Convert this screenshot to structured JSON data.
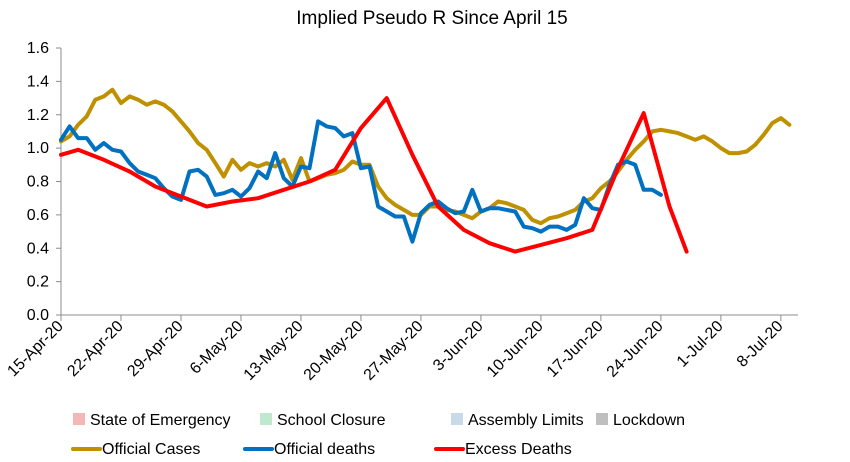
{
  "chart_data": {
    "type": "line",
    "title": "Implied Pseudo R Since April 15",
    "xlabel": "",
    "ylabel": "",
    "ylim": [
      0,
      1.6
    ],
    "yticks": [
      0.0,
      0.2,
      0.4,
      0.6,
      0.8,
      1.0,
      1.2,
      1.4,
      1.6
    ],
    "ytick_labels": [
      "0.0",
      "0.2",
      "0.4",
      "0.6",
      "0.8",
      "1.0",
      "1.2",
      "1.4",
      "1.6"
    ],
    "x_start_date": "2020-04-15",
    "x_day_count": 86,
    "xticks": [
      {
        "date": "2020-04-15",
        "label": "15-Apr-20"
      },
      {
        "date": "2020-04-22",
        "label": "22-Apr-20"
      },
      {
        "date": "2020-04-29",
        "label": "29-Apr-20"
      },
      {
        "date": "2020-05-06",
        "label": "6-May-20"
      },
      {
        "date": "2020-05-13",
        "label": "13-May-20"
      },
      {
        "date": "2020-05-20",
        "label": "20-May-20"
      },
      {
        "date": "2020-05-27",
        "label": "27-May-20"
      },
      {
        "date": "2020-06-03",
        "label": "3-Jun-20"
      },
      {
        "date": "2020-06-10",
        "label": "10-Jun-20"
      },
      {
        "date": "2020-06-17",
        "label": "17-Jun-20"
      },
      {
        "date": "2020-06-24",
        "label": "24-Jun-20"
      },
      {
        "date": "2020-07-01",
        "label": "1-Jul-20"
      },
      {
        "date": "2020-07-08",
        "label": "8-Jul-20"
      }
    ],
    "grid": false,
    "legend_position": "bottom",
    "legend": [
      {
        "name": "State of Emergency",
        "color": "#f4b6b6",
        "kind": "swatch"
      },
      {
        "name": "School Closure",
        "color": "#bfe8cf",
        "kind": "swatch"
      },
      {
        "name": "Assembly Limits",
        "color": "#c8d9ea",
        "kind": "swatch"
      },
      {
        "name": "Lockdown",
        "color": "#bfbfbf",
        "kind": "swatch"
      },
      {
        "name": "Official Cases",
        "color": "#bf9000",
        "kind": "line"
      },
      {
        "name": "Official deaths",
        "color": "#0070c0",
        "kind": "line"
      },
      {
        "name": "Excess Deaths",
        "color": "#ff0000",
        "kind": "line"
      }
    ],
    "series": [
      {
        "name": "Official Cases",
        "color": "#bf9000",
        "x": [
          "2020-04-15",
          "2020-04-16",
          "2020-04-17",
          "2020-04-18",
          "2020-04-19",
          "2020-04-20",
          "2020-04-21",
          "2020-04-22",
          "2020-04-23",
          "2020-04-24",
          "2020-04-25",
          "2020-04-26",
          "2020-04-27",
          "2020-04-28",
          "2020-04-29",
          "2020-04-30",
          "2020-05-01",
          "2020-05-02",
          "2020-05-03",
          "2020-05-04",
          "2020-05-05",
          "2020-05-06",
          "2020-05-07",
          "2020-05-08",
          "2020-05-09",
          "2020-05-10",
          "2020-05-11",
          "2020-05-12",
          "2020-05-13",
          "2020-05-14",
          "2020-05-15",
          "2020-05-16",
          "2020-05-17",
          "2020-05-18",
          "2020-05-19",
          "2020-05-20",
          "2020-05-21",
          "2020-05-22",
          "2020-05-23",
          "2020-05-24",
          "2020-05-25",
          "2020-05-26",
          "2020-05-27",
          "2020-05-28",
          "2020-05-29",
          "2020-05-30",
          "2020-05-31",
          "2020-06-01",
          "2020-06-02",
          "2020-06-03",
          "2020-06-04",
          "2020-06-05",
          "2020-06-06",
          "2020-06-07",
          "2020-06-08",
          "2020-06-09",
          "2020-06-10",
          "2020-06-11",
          "2020-06-12",
          "2020-06-13",
          "2020-06-14",
          "2020-06-15",
          "2020-06-16",
          "2020-06-17",
          "2020-06-18",
          "2020-06-19",
          "2020-06-20",
          "2020-06-21",
          "2020-06-22",
          "2020-06-23",
          "2020-06-24",
          "2020-06-25",
          "2020-06-26",
          "2020-06-27",
          "2020-06-28",
          "2020-06-29",
          "2020-06-30",
          "2020-07-01",
          "2020-07-02",
          "2020-07-03",
          "2020-07-04",
          "2020-07-05",
          "2020-07-06",
          "2020-07-07",
          "2020-07-08",
          "2020-07-09"
        ],
        "values": [
          1.04,
          1.07,
          1.14,
          1.19,
          1.29,
          1.31,
          1.35,
          1.27,
          1.31,
          1.29,
          1.26,
          1.28,
          1.26,
          1.22,
          1.16,
          1.1,
          1.03,
          0.99,
          0.91,
          0.83,
          0.93,
          0.87,
          0.91,
          0.89,
          0.91,
          0.89,
          0.93,
          0.81,
          0.94,
          0.8,
          0.82,
          0.84,
          0.85,
          0.87,
          0.92,
          0.9,
          0.9,
          0.77,
          0.7,
          0.66,
          0.63,
          0.6,
          0.6,
          0.65,
          0.65,
          0.63,
          0.62,
          0.6,
          0.58,
          0.62,
          0.64,
          0.68,
          0.67,
          0.65,
          0.63,
          0.57,
          0.55,
          0.58,
          0.59,
          0.61,
          0.63,
          0.68,
          0.7,
          0.76,
          0.8,
          0.86,
          0.93,
          0.99,
          1.04,
          1.1,
          1.11,
          1.1,
          1.09,
          1.07,
          1.05,
          1.07,
          1.04,
          1.0,
          0.97,
          0.97,
          0.98,
          1.02,
          1.08,
          1.15,
          1.18,
          1.14
        ]
      },
      {
        "name": "Official deaths",
        "color": "#0070c0",
        "x": [
          "2020-04-15",
          "2020-04-16",
          "2020-04-17",
          "2020-04-18",
          "2020-04-19",
          "2020-04-20",
          "2020-04-21",
          "2020-04-22",
          "2020-04-23",
          "2020-04-24",
          "2020-04-25",
          "2020-04-26",
          "2020-04-27",
          "2020-04-28",
          "2020-04-29",
          "2020-04-30",
          "2020-05-01",
          "2020-05-02",
          "2020-05-03",
          "2020-05-04",
          "2020-05-05",
          "2020-05-06",
          "2020-05-07",
          "2020-05-08",
          "2020-05-09",
          "2020-05-10",
          "2020-05-11",
          "2020-05-12",
          "2020-05-13",
          "2020-05-14",
          "2020-05-15",
          "2020-05-16",
          "2020-05-17",
          "2020-05-18",
          "2020-05-19",
          "2020-05-20",
          "2020-05-21",
          "2020-05-22",
          "2020-05-23",
          "2020-05-24",
          "2020-05-25",
          "2020-05-26",
          "2020-05-27",
          "2020-05-28",
          "2020-05-29",
          "2020-05-30",
          "2020-05-31",
          "2020-06-01",
          "2020-06-02",
          "2020-06-03",
          "2020-06-04",
          "2020-06-05",
          "2020-06-06",
          "2020-06-07",
          "2020-06-08",
          "2020-06-09",
          "2020-06-10",
          "2020-06-11",
          "2020-06-12",
          "2020-06-13",
          "2020-06-14",
          "2020-06-15",
          "2020-06-16",
          "2020-06-17",
          "2020-06-18",
          "2020-06-19",
          "2020-06-20",
          "2020-06-21",
          "2020-06-22",
          "2020-06-23",
          "2020-06-24",
          "2020-06-25"
        ],
        "values": [
          1.05,
          1.13,
          1.06,
          1.06,
          0.99,
          1.03,
          0.99,
          0.98,
          0.91,
          0.86,
          0.84,
          0.82,
          0.76,
          0.71,
          0.69,
          0.86,
          0.87,
          0.83,
          0.72,
          0.73,
          0.75,
          0.71,
          0.76,
          0.86,
          0.82,
          0.97,
          0.82,
          0.77,
          0.89,
          0.88,
          1.16,
          1.13,
          1.12,
          1.07,
          1.09,
          0.88,
          0.89,
          0.65,
          0.62,
          0.59,
          0.59,
          0.44,
          0.61,
          0.66,
          0.68,
          0.64,
          0.61,
          0.62,
          0.75,
          0.62,
          0.64,
          0.64,
          0.63,
          0.62,
          0.53,
          0.52,
          0.5,
          0.53,
          0.53,
          0.51,
          0.54,
          0.7,
          0.64,
          0.63,
          0.78,
          0.9,
          0.92,
          0.9,
          0.75,
          0.75,
          0.72,
          null
        ]
      },
      {
        "name": "Excess Deaths",
        "color": "#ff0000",
        "x": [
          "2020-04-15",
          "2020-04-17",
          "2020-04-20",
          "2020-04-23",
          "2020-04-26",
          "2020-04-29",
          "2020-05-02",
          "2020-05-05",
          "2020-05-08",
          "2020-05-11",
          "2020-05-14",
          "2020-05-17",
          "2020-05-20",
          "2020-05-23",
          "2020-05-26",
          "2020-05-29",
          "2020-06-01",
          "2020-06-04",
          "2020-06-07",
          "2020-06-10",
          "2020-06-13",
          "2020-06-16",
          "2020-06-19",
          "2020-06-22",
          "2020-06-25",
          "2020-06-27"
        ],
        "values": [
          0.96,
          0.99,
          0.93,
          0.86,
          0.77,
          0.71,
          0.65,
          0.68,
          0.7,
          0.75,
          0.8,
          0.87,
          1.12,
          1.3,
          0.96,
          0.65,
          0.51,
          0.43,
          0.38,
          0.42,
          0.46,
          0.51,
          0.88,
          1.21,
          0.65,
          0.38
        ]
      }
    ]
  }
}
